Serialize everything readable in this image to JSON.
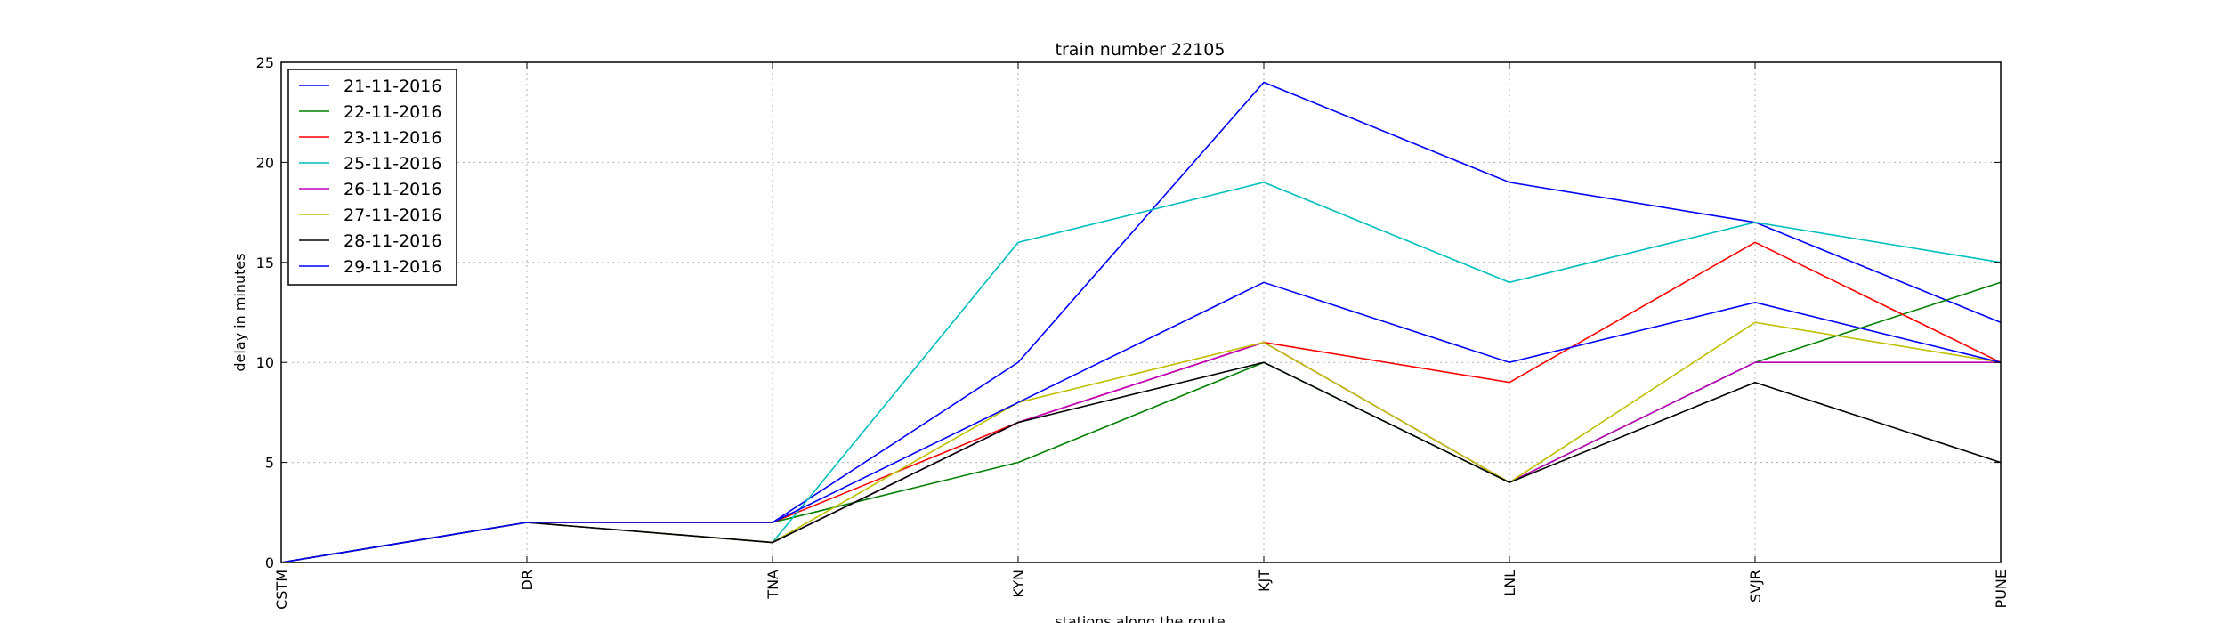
{
  "chart_data": {
    "type": "line",
    "title": "train number 22105",
    "xlabel": "stations along the route",
    "ylabel": "delay in minutes",
    "categories": [
      "CSTM",
      "DR",
      "TNA",
      "KYN",
      "KJT",
      "LNL",
      "SVJR",
      "PUNE"
    ],
    "ylim": [
      0,
      25
    ],
    "yticks": [
      0,
      5,
      10,
      15,
      20,
      25
    ],
    "grid": true,
    "legend_position": "top-left",
    "series": [
      {
        "name": "21-11-2016",
        "color": "#0000ff",
        "values": [
          0,
          2,
          2,
          10,
          24,
          19,
          17,
          12
        ]
      },
      {
        "name": "22-11-2016",
        "color": "#008000",
        "values": [
          0,
          2,
          2,
          5,
          10,
          4,
          10,
          14
        ]
      },
      {
        "name": "23-11-2016",
        "color": "#ff0000",
        "values": [
          0,
          2,
          2,
          7,
          11,
          9,
          16,
          10
        ]
      },
      {
        "name": "25-11-2016",
        "color": "#00bfbf",
        "values": [
          0,
          2,
          1,
          16,
          19,
          14,
          17,
          15
        ]
      },
      {
        "name": "26-11-2016",
        "color": "#bf00bf",
        "values": [
          0,
          2,
          1,
          7,
          11,
          4,
          10,
          10
        ]
      },
      {
        "name": "27-11-2016",
        "color": "#bfbf00",
        "values": [
          0,
          2,
          1,
          8,
          11,
          4,
          12,
          10
        ]
      },
      {
        "name": "28-11-2016",
        "color": "#000000",
        "values": [
          0,
          2,
          1,
          7,
          10,
          4,
          9,
          5
        ]
      },
      {
        "name": "29-11-2016",
        "color": "#0000ff",
        "values": [
          0,
          2,
          2,
          8,
          14,
          10,
          13,
          10
        ]
      }
    ]
  }
}
